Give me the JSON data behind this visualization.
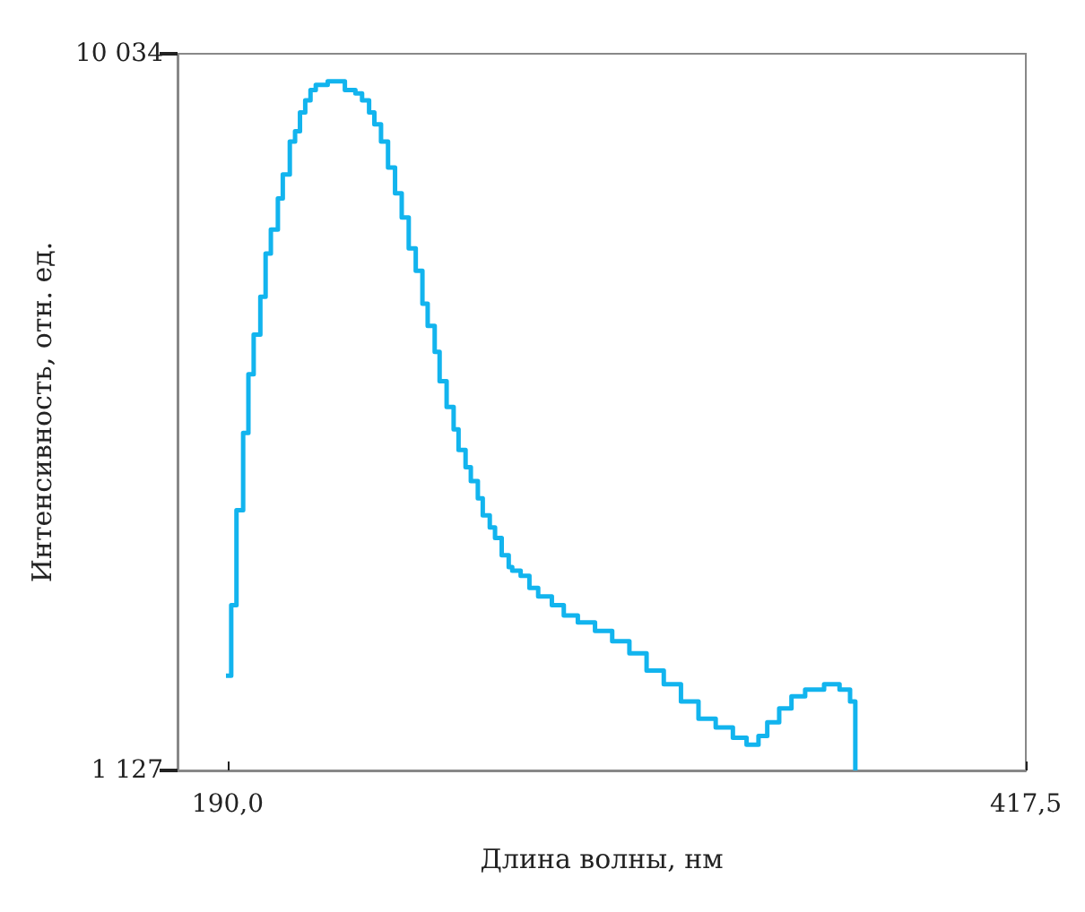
{
  "chart_data": {
    "type": "step",
    "xlabel": "Длина волны, нм",
    "ylabel": "Интенсивность, отн. ед.",
    "xlim": [
      175.7,
      417.5
    ],
    "ylim": [
      1127,
      10034
    ],
    "xticks": [
      {
        "value": 190,
        "label": "190,0"
      },
      {
        "value": 417.5,
        "label": "417,5"
      }
    ],
    "yticks": [
      {
        "value": 1127,
        "label": "1 127"
      },
      {
        "value": 10034,
        "label": "10 034"
      }
    ],
    "grid": false,
    "marker": "none",
    "line_style": "solid",
    "x": [
      189.5,
      191.0,
      192.5,
      194.4,
      195.9,
      197.4,
      199.3,
      200.8,
      202.3,
      204.3,
      205.7,
      207.7,
      209.2,
      210.6,
      212.1,
      213.6,
      215.1,
      218.5,
      223.4,
      226.4,
      228.3,
      230.3,
      231.8,
      233.7,
      235.7,
      237.7,
      239.6,
      241.6,
      243.6,
      245.5,
      247.0,
      249.0,
      250.4,
      252.4,
      254.4,
      255.8,
      257.8,
      259.3,
      261.3,
      262.7,
      264.7,
      266.2,
      268.1,
      270.1,
      271.1,
      273.5,
      276.0,
      278.5,
      282.4,
      285.8,
      289.8,
      294.7,
      299.6,
      304.5,
      309.4,
      314.3,
      319.2,
      324.2,
      329.1,
      334.0,
      337.9,
      341.3,
      343.8,
      347.2,
      350.7,
      354.6,
      360.0,
      364.4,
      367.4,
      368.9
    ],
    "series": [
      {
        "color": "#12b4ee",
        "values": [
          2305,
          3182,
          4360,
          5323,
          6051,
          6544,
          7015,
          7550,
          7850,
          8235,
          8535,
          8942,
          9070,
          9306,
          9455,
          9584,
          9648,
          9691,
          9584,
          9541,
          9455,
          9306,
          9156,
          8942,
          8621,
          8299,
          7999,
          7614,
          7336,
          6929,
          6651,
          6330,
          5965,
          5645,
          5366,
          5109,
          4895,
          4724,
          4510,
          4296,
          4146,
          4017,
          3803,
          3653,
          3611,
          3546,
          3396,
          3289,
          3182,
          3054,
          2968,
          2861,
          2733,
          2583,
          2369,
          2198,
          1983,
          1769,
          1662,
          1534,
          1448,
          1555,
          1726,
          1898,
          2048,
          2133,
          2198,
          2133,
          1983,
          1127
        ]
      }
    ]
  }
}
